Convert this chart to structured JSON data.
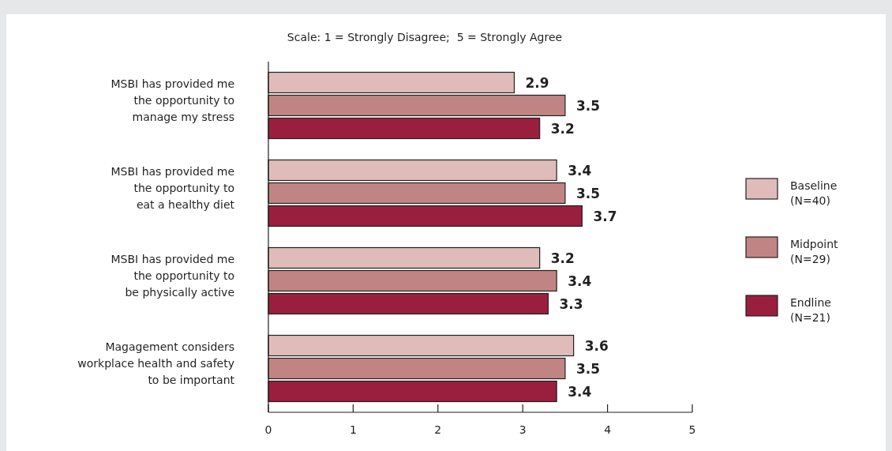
{
  "chart_data": {
    "type": "bar",
    "orientation": "horizontal",
    "title": "Scale: 1 = Strongly Disagree;  5 = Strongly Agree",
    "categories": [
      "MSBI has provided me\nthe opportunity to\nmanage my stress",
      "MSBI has provided me\nthe opportunity to\neat a healthy diet",
      "MSBI has provided me\nthe opportunity to\nbe physically active",
      "Magagement considers\nworkplace health and safety\nto be important"
    ],
    "series": [
      {
        "name": "Baseline\n(N=40)",
        "color": "#dfbcba",
        "values": [
          2.9,
          3.4,
          3.2,
          3.6
        ]
      },
      {
        "name": "Midpoint\n(N=29)",
        "color": "#c08583",
        "values": [
          3.5,
          3.5,
          3.4,
          3.5
        ]
      },
      {
        "name": "Endline\n(N=21)",
        "color": "#9a1f3e",
        "values": [
          3.2,
          3.7,
          3.3,
          3.4
        ]
      }
    ],
    "xlim": [
      0,
      5
    ],
    "xticks": [
      0,
      1,
      2,
      3,
      4,
      5
    ],
    "data_labels": true,
    "legend": "right"
  }
}
